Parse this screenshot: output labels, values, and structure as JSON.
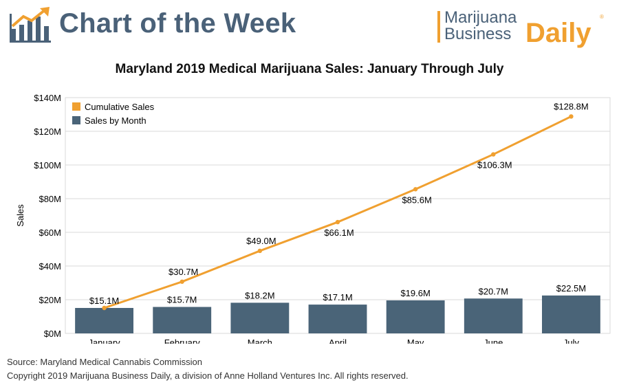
{
  "header": {
    "title": "Chart of the Week",
    "brand_line1": "Marijuana",
    "brand_line2": "Business",
    "brand_daily": "Daily",
    "brand_reg": "®"
  },
  "colors": {
    "bar": "#4a6478",
    "line": "#f0a030",
    "title_blue": "#4a6178",
    "grid": "#d9d9d9"
  },
  "chart_data": {
    "type": "bar",
    "title": "Maryland 2019 Medical Marijuana Sales: January Through July",
    "xlabel": "",
    "ylabel": "Sales",
    "ylim": [
      0,
      140
    ],
    "yticks": [
      0,
      20,
      40,
      60,
      80,
      100,
      120,
      140
    ],
    "ytick_labels": [
      "$0M",
      "$20M",
      "$40M",
      "$60M",
      "$80M",
      "$100M",
      "$120M",
      "$140M"
    ],
    "categories": [
      "January",
      "February",
      "March",
      "April",
      "May",
      "June",
      "July"
    ],
    "legend_position": "top-left",
    "grid": true,
    "series": [
      {
        "name": "Sales by Month",
        "kind": "bar",
        "values": [
          15.1,
          15.7,
          18.2,
          17.1,
          19.6,
          20.7,
          22.5
        ],
        "labels": [
          "$15.1M",
          "$15.7M",
          "$18.2M",
          "$17.1M",
          "$19.6M",
          "$20.7M",
          "$22.5M"
        ]
      },
      {
        "name": "Cumulative Sales",
        "kind": "line",
        "values": [
          15.1,
          30.7,
          49.0,
          66.1,
          85.6,
          106.3,
          128.8
        ],
        "labels": [
          "$15.1M",
          "$30.7M",
          "$49.0M",
          "$66.1M",
          "$85.6M",
          "$106.3M",
          "$128.8M"
        ]
      }
    ]
  },
  "footer": {
    "source": "Source: Maryland Medical Cannabis Commission",
    "copyright": "Copyright 2019 Marijuana Business Daily, a division of Anne Holland Ventures Inc. All rights reserved."
  }
}
